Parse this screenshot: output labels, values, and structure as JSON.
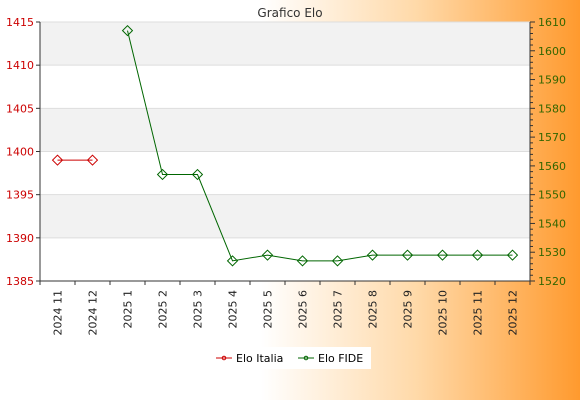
{
  "chart_data": {
    "type": "line",
    "title": "Grafico Elo",
    "categories": [
      "2024 11",
      "2024 12",
      "2025 1",
      "2025 2",
      "2025 3",
      "2025 4",
      "2025 5",
      "2025 6",
      "2025 7",
      "2025 8",
      "2025 9",
      "2025 10",
      "2025 11",
      "2025 12"
    ],
    "y_left": {
      "range": [
        1385,
        1415
      ],
      "ticks": [
        1385,
        1390,
        1395,
        1400,
        1405,
        1410,
        1415
      ],
      "color": "#cc0000"
    },
    "y_right": {
      "range": [
        1520,
        1610
      ],
      "ticks": [
        1520,
        1530,
        1540,
        1550,
        1560,
        1570,
        1580,
        1590,
        1600,
        1610
      ],
      "color": "#336600"
    },
    "grid": true,
    "legend_position": "bottom",
    "series": [
      {
        "name": "Elo Italia",
        "axis": "left",
        "color": "#cc0000",
        "values": [
          1399,
          1399,
          null,
          null,
          null,
          null,
          null,
          null,
          null,
          null,
          null,
          null,
          null,
          null
        ]
      },
      {
        "name": "Elo FIDE",
        "axis": "right",
        "color": "#006600",
        "values": [
          null,
          null,
          1607,
          1557,
          1557,
          1527,
          1529,
          1527,
          1527,
          1529,
          1529,
          1529,
          1529,
          1529
        ]
      }
    ]
  }
}
